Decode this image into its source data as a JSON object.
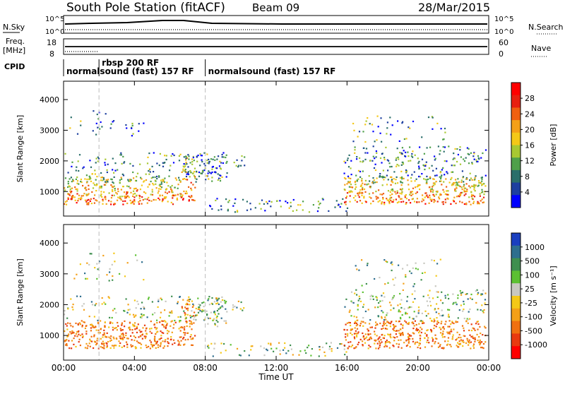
{
  "header": {
    "station": "South Pole Station (fitACF)",
    "beam": "Beam 09",
    "date": "28/Mar/2015"
  },
  "strip_labels": {
    "nsky": "N.Sky",
    "nsky_top": "10^5",
    "nsky_bottom": "10^0",
    "nsearch": "N.Search",
    "nsearch_top": "10^5",
    "nsearch_bottom": "10^0",
    "freq_line1": "Freq.",
    "freq_line2": "[MHz]",
    "freq_top": "18",
    "freq_bottom": "8",
    "nave": "Nave",
    "nave_top": "60",
    "nave_bottom": "0",
    "cpid": "CPID"
  },
  "cpid_segments": [
    {
      "label": "normalsound (fast) 157 RF",
      "start_hour": 0.0
    },
    {
      "label": "rbsp 200 RF",
      "start_hour": 2.0
    },
    {
      "label": "normalsound (fast) 157 RF",
      "start_hour": 8.0
    }
  ],
  "chart_data": [
    {
      "type": "heatmap",
      "name": "power",
      "ylabel": "Slant Range [km]",
      "xlabel": "",
      "x_ticks": [
        "00:00",
        "04:00",
        "08:00",
        "12:00",
        "16:00",
        "20:00",
        "00:00"
      ],
      "y_ticks": [
        1000,
        2000,
        3000,
        4000
      ],
      "xlim_hours": [
        0,
        24
      ],
      "ylim_km": [
        200,
        4600
      ],
      "colorbar_label": "Power [dB]",
      "colorbar_ticks": [
        "4",
        "8",
        "12",
        "16",
        "20",
        "24",
        "28"
      ],
      "colorbar_colors": [
        "#0000ff",
        "#1d3f9f",
        "#2a6e6a",
        "#4fa04a",
        "#a8c832",
        "#f4c818",
        "#f4a018",
        "#f06010",
        "#e82010",
        "#ff0000"
      ]
    },
    {
      "type": "heatmap",
      "name": "velocity",
      "ylabel": "Slant Range [km]",
      "xlabel": "Time UT",
      "x_ticks": [
        "00:00",
        "04:00",
        "08:00",
        "12:00",
        "16:00",
        "20:00",
        "00:00"
      ],
      "y_ticks": [
        1000,
        2000,
        3000,
        4000
      ],
      "xlim_hours": [
        0,
        24
      ],
      "ylim_km": [
        200,
        4600
      ],
      "colorbar_label": "Velocity [m s⁻¹]",
      "colorbar_ticks": [
        "1000",
        "500",
        "100",
        "25",
        "-25",
        "-100",
        "-500",
        "-1000"
      ],
      "colorbar_colors": [
        "#1a3fbf",
        "#2e6e8e",
        "#3f8f4f",
        "#5cc032",
        "#c8c8c0",
        "#f4c818",
        "#f4a018",
        "#f07010",
        "#e83a10",
        "#ff0000"
      ]
    }
  ]
}
